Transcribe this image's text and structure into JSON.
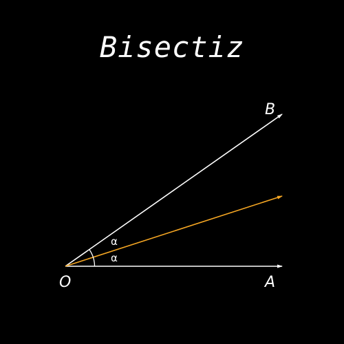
{
  "title": "Bisectiz",
  "points": {
    "origin": "O",
    "a": "A",
    "b": "B"
  },
  "angles": {
    "upper": "α",
    "lower": "α"
  },
  "colors": {
    "background": "#000000",
    "rays": "#ffffff",
    "bisector": "#f5a623"
  }
}
